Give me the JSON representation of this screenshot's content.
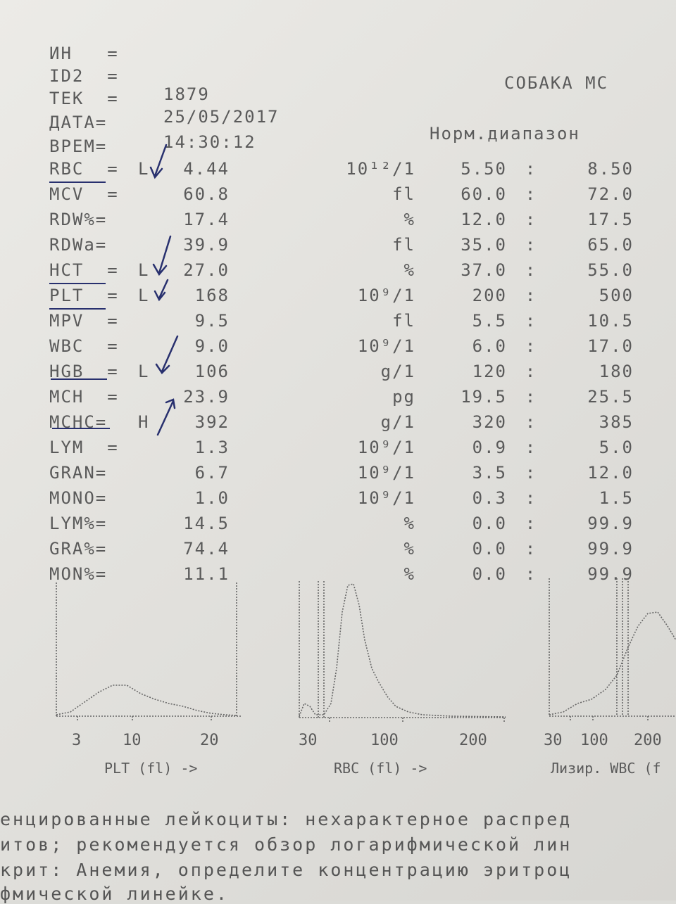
{
  "header": {
    "species": "СОБАКА МС",
    "fields": [
      {
        "label": "ИН   =",
        "value": ""
      },
      {
        "label": "ID2  =",
        "value": ""
      },
      {
        "label": "ТЕК  =",
        "value": "1879"
      },
      {
        "label": "ДАТА=",
        "value": "25/05/2017"
      },
      {
        "label": "ВРЕМ=",
        "value": "14:30:12"
      }
    ],
    "range_title": "Норм.диапазон"
  },
  "results": [
    {
      "name": "RBC  =",
      "flag": "L",
      "value": "4.44",
      "unit": "10¹²/1",
      "low": "5.50",
      "high": "8.50"
    },
    {
      "name": "MCV  =",
      "flag": "",
      "value": "60.8",
      "unit": "fl",
      "low": "60.0",
      "high": "72.0"
    },
    {
      "name": "RDW%=",
      "flag": "",
      "value": "17.4",
      "unit": "%",
      "low": "12.0",
      "high": "17.5"
    },
    {
      "name": "RDWa=",
      "flag": "",
      "value": "39.9",
      "unit": "fl",
      "low": "35.0",
      "high": "65.0"
    },
    {
      "name": "HCT  =",
      "flag": "L",
      "value": "27.0",
      "unit": "%",
      "low": "37.0",
      "high": "55.0"
    },
    {
      "name": "PLT  =",
      "flag": "L",
      "value": "168",
      "unit": "10⁹/1",
      "low": "200",
      "high": "500"
    },
    {
      "name": "MPV  =",
      "flag": "",
      "value": "9.5",
      "unit": "fl",
      "low": "5.5",
      "high": "10.5"
    },
    {
      "name": "WBC  =",
      "flag": "",
      "value": "9.0",
      "unit": "10⁹/1",
      "low": "6.0",
      "high": "17.0"
    },
    {
      "name": "HGB  =",
      "flag": "L",
      "value": "106",
      "unit": "g/1",
      "low": "120",
      "high": "180"
    },
    {
      "name": "MCH  =",
      "flag": "",
      "value": "23.9",
      "unit": "pg",
      "low": "19.5",
      "high": "25.5"
    },
    {
      "name": "MCHC=",
      "flag": "H",
      "value": "392",
      "unit": "g/1",
      "low": "320",
      "high": "385"
    },
    {
      "name": "LYM  =",
      "flag": "",
      "value": "1.3",
      "unit": "10⁹/1",
      "low": "0.9",
      "high": "5.0"
    },
    {
      "name": "GRAN=",
      "flag": "",
      "value": "6.7",
      "unit": "10⁹/1",
      "low": "3.5",
      "high": "12.0"
    },
    {
      "name": "MONO=",
      "flag": "",
      "value": "1.0",
      "unit": "10⁹/1",
      "low": "0.3",
      "high": "1.5"
    },
    {
      "name": "LYM%=",
      "flag": "",
      "value": "14.5",
      "unit": "%",
      "low": "0.0",
      "high": "99.9"
    },
    {
      "name": "GRA%=",
      "flag": "",
      "value": "74.4",
      "unit": "%",
      "low": "0.0",
      "high": "99.9"
    },
    {
      "name": "MON%=",
      "flag": "",
      "value": "11.1",
      "unit": "%",
      "low": "0.0",
      "high": "99.9"
    }
  ],
  "range_separator": ":",
  "histograms": {
    "plt": {
      "ticks": [
        "3",
        "10",
        "20"
      ],
      "label": "PLT (fl) ->"
    },
    "rbc": {
      "ticks": [
        "30",
        "100",
        "200"
      ],
      "label": "RBC (fl) ->"
    },
    "wbc": {
      "ticks": [
        "30",
        "100",
        "200"
      ],
      "label": "Лизир. WBC (f"
    }
  },
  "notes": [
    "енцированные лейкоциты: нехарактерное распред",
    "итов; рекомендуется обзор логарифмической лин",
    "крит: Анемия, определите концентрацию эритроц",
    "фмической линейке."
  ],
  "colors": {
    "ink": "#5a5a5a",
    "pen": "#28306e",
    "paper": "#e6e5e1"
  }
}
